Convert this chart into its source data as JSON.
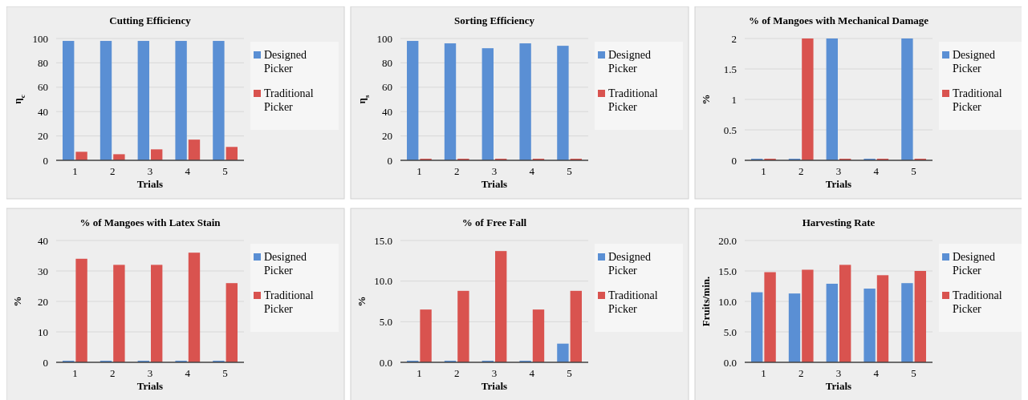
{
  "chart_data": [
    {
      "type": "bar",
      "title": "Cutting Efficiency",
      "xlabel": "Trials",
      "ylabel": "η$_{c}$",
      "categories": [
        "1",
        "2",
        "3",
        "4",
        "5"
      ],
      "series": [
        {
          "name": "Designed Picker",
          "color": "#5a8fd4",
          "values": [
            98,
            98,
            98,
            98,
            98
          ]
        },
        {
          "name": "Traditional Picker",
          "color": "#d9534f",
          "values": [
            7,
            5,
            9,
            17,
            11
          ]
        }
      ],
      "ylim": [
        0,
        100
      ],
      "yticks": [
        0,
        20,
        40,
        60,
        80,
        100
      ],
      "grid": "y",
      "legend": "right"
    },
    {
      "type": "bar",
      "title": "Sorting Efficiency",
      "xlabel": "Trials",
      "ylabel": "η$_{s}$",
      "categories": [
        "1",
        "2",
        "3",
        "4",
        "5"
      ],
      "series": [
        {
          "name": "Designed Picker",
          "color": "#5a8fd4",
          "values": [
            98,
            96,
            92,
            96,
            94
          ]
        },
        {
          "name": "Traditional Picker",
          "color": "#d9534f",
          "values": [
            0,
            0,
            0,
            0,
            0
          ]
        }
      ],
      "ylim": [
        0,
        100
      ],
      "yticks": [
        0,
        20,
        40,
        60,
        80,
        100
      ],
      "grid": "y",
      "legend": "right"
    },
    {
      "type": "bar",
      "title": "% of Mangoes with Mechanical Damage",
      "xlabel": "Trials",
      "ylabel": "%",
      "categories": [
        "1",
        "2",
        "3",
        "4",
        "5"
      ],
      "series": [
        {
          "name": "Designed Picker",
          "color": "#5a8fd4",
          "values": [
            0,
            0,
            2,
            0,
            2
          ]
        },
        {
          "name": "Traditional Picker",
          "color": "#d9534f",
          "values": [
            0,
            2,
            0,
            0,
            0
          ]
        }
      ],
      "ylim": [
        0,
        2
      ],
      "yticks": [
        0,
        0.5,
        1,
        1.5,
        2
      ],
      "grid": "y",
      "legend": "right"
    },
    {
      "type": "bar",
      "title": "% of Mangoes with Latex Stain",
      "xlabel": "Trials",
      "ylabel": "%",
      "categories": [
        "1",
        "2",
        "3",
        "4",
        "5"
      ],
      "series": [
        {
          "name": "Designed Picker",
          "color": "#5a8fd4",
          "values": [
            0,
            0,
            0,
            0,
            0
          ]
        },
        {
          "name": "Traditional Picker",
          "color": "#d9534f",
          "values": [
            34,
            32,
            32,
            36,
            26
          ]
        }
      ],
      "ylim": [
        0,
        40
      ],
      "yticks": [
        0,
        10,
        20,
        30,
        40
      ],
      "grid": "y",
      "legend": "right"
    },
    {
      "type": "bar",
      "title": "% of Free Fall",
      "xlabel": "Trials",
      "ylabel": "%",
      "categories": [
        "1",
        "2",
        "3",
        "4",
        "5"
      ],
      "series": [
        {
          "name": "Designed Picker",
          "color": "#5a8fd4",
          "values": [
            0,
            0,
            0,
            0,
            2.3
          ]
        },
        {
          "name": "Traditional Picker",
          "color": "#d9534f",
          "values": [
            6.5,
            8.8,
            13.7,
            6.5,
            8.8
          ]
        }
      ],
      "ylim": [
        0,
        15
      ],
      "yticks": [
        {
          "value": 0,
          "label": "0.0"
        },
        {
          "value": 5,
          "label": "5.0"
        },
        {
          "value": 10,
          "label": "10.0"
        },
        {
          "value": 15,
          "label": "15.0"
        }
      ],
      "grid": "y",
      "legend": "right"
    },
    {
      "type": "bar",
      "title": "Harvesting Rate",
      "xlabel": "Trials",
      "ylabel": "Fruits/min.",
      "categories": [
        "1",
        "2",
        "3",
        "4",
        "5"
      ],
      "series": [
        {
          "name": "Designed Picker",
          "color": "#5a8fd4",
          "values": [
            11.5,
            11.3,
            12.9,
            12.1,
            13.0
          ]
        },
        {
          "name": "Traditional Picker",
          "color": "#d9534f",
          "values": [
            14.8,
            15.2,
            16.0,
            14.3,
            15.0
          ]
        }
      ],
      "ylim": [
        0,
        20
      ],
      "yticks": [
        {
          "value": 0,
          "label": "0.0"
        },
        {
          "value": 5,
          "label": "5.0"
        },
        {
          "value": 10,
          "label": "10.0"
        },
        {
          "value": 15,
          "label": "15.0"
        },
        {
          "value": 20,
          "label": "20.0"
        }
      ],
      "grid": "y",
      "legend": "right"
    }
  ]
}
